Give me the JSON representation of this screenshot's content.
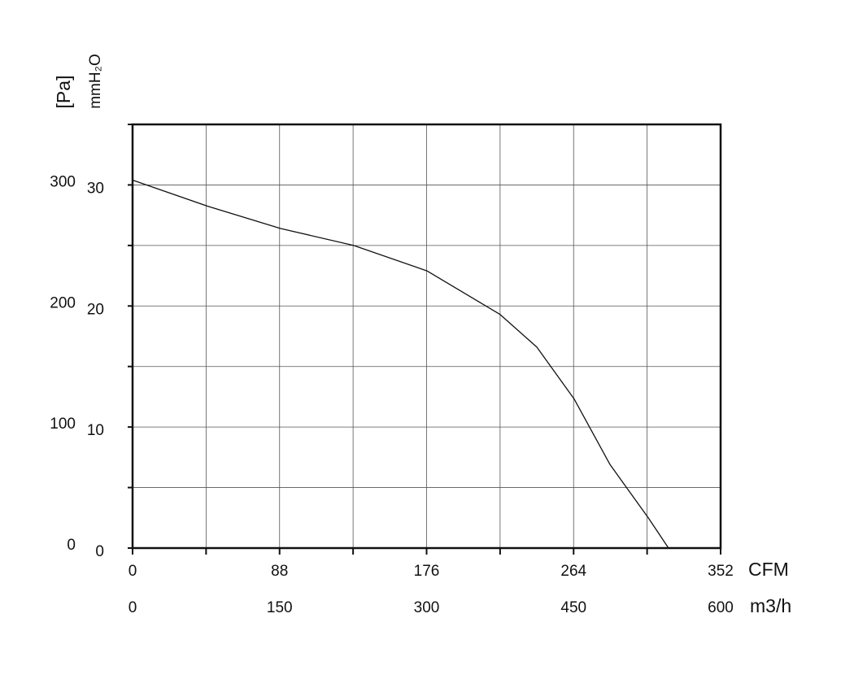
{
  "chart_data": {
    "type": "line",
    "x_label": "CFM",
    "x2_label": "m3/h",
    "y_label": "[Pa]",
    "y2_label": "mmH₂O",
    "x": [
      0,
      44.8,
      88.6,
      132.4,
      176.2,
      220,
      242,
      264.4,
      285.8,
      308.7,
      320.8
    ],
    "series": [
      {
        "color": "#111111",
        "values": [
          304,
          282.5,
          264,
          250,
          229,
          193,
          166,
          123,
          69,
          25,
          0
        ]
      }
    ],
    "xlim": [
      0,
      352
    ],
    "xticks": [
      0,
      88,
      176,
      264,
      352
    ],
    "xminor_ticks": [
      44,
      132,
      220,
      308
    ],
    "x2lim": [
      0,
      600
    ],
    "x2ticks": [
      0,
      150,
      300,
      450,
      600
    ],
    "ylim": [
      0,
      350
    ],
    "yticks": [
      0,
      100,
      200,
      300
    ],
    "yminor_ticks": [
      50,
      150,
      250,
      350
    ],
    "y2lim": [
      0,
      35
    ],
    "y2ticks": [
      0,
      10,
      20,
      30
    ],
    "grid": true
  }
}
